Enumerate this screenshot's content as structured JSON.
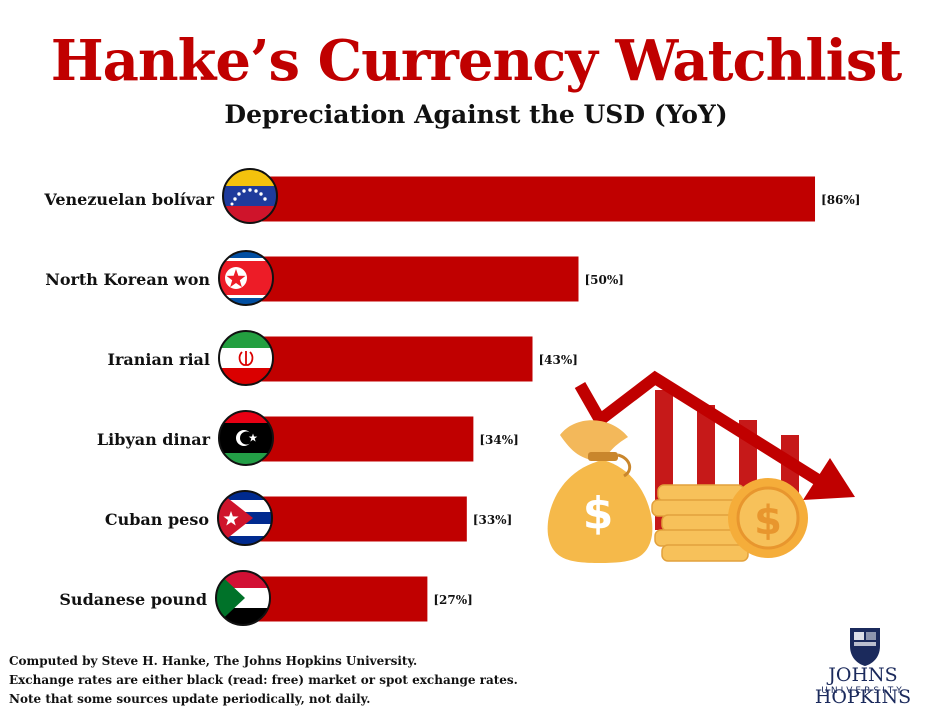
{
  "header": {
    "title": "Hanke’s Currency Watchlist",
    "subtitle": "Depreciation Against the USD (YoY)"
  },
  "chart_data": {
    "type": "bar",
    "orientation": "horizontal",
    "title": "Hanke’s Currency Watchlist",
    "subtitle": "Depreciation Against the USD (YoY)",
    "categories": [
      "Venezuelan bolívar",
      "North Korean won",
      "Iranian rial",
      "Libyan dinar",
      "Cuban peso",
      "Sudanese pound"
    ],
    "values": [
      86,
      50,
      43,
      34,
      33,
      27
    ],
    "value_labels": [
      "[86%]",
      "[50%]",
      "[43%]",
      "[34%]",
      "[33%]",
      "[27%]"
    ],
    "flags": [
      "venezuela-flag-icon",
      "north-korea-flag-icon",
      "iran-flag-icon",
      "libya-flag-icon",
      "cuba-flag-icon",
      "sudan-flag-icon"
    ],
    "bar_color": "#c00000",
    "grid": false,
    "legend": "none"
  },
  "footnote": {
    "lines": [
      "Computed by Steve H. Hanke, The Johns Hopkins University.",
      "Exchange rates are either black (read: free) market or spot exchange rates.",
      "Note that some sources update periodically, not daily."
    ]
  },
  "logo": {
    "name": "JOHNS HOPKINS",
    "sub": "UNIVERSITY"
  },
  "decoration": {
    "icons": [
      "money-bag-icon",
      "coin-stack-icon",
      "dollar-coin-icon",
      "declining-bar-chart-icon",
      "down-arrow-icon"
    ],
    "accent_color": "#c00000",
    "gold_color": "#f5b94a"
  }
}
